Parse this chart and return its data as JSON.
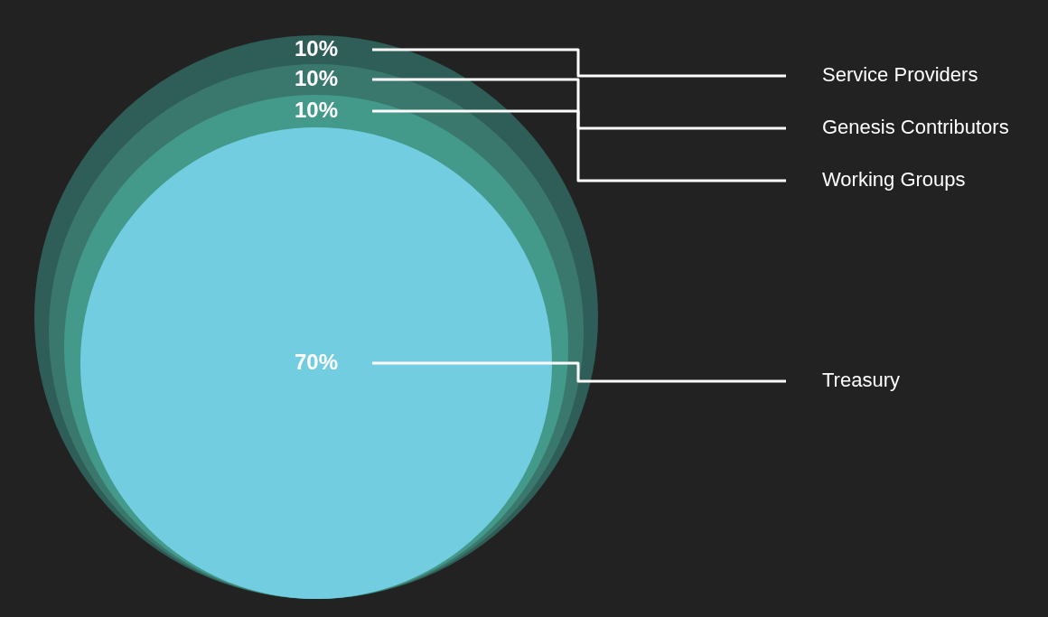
{
  "chart_data": {
    "type": "other",
    "categories": [
      "Service Providers",
      "Genesis Contributors",
      "Working Groups",
      "Treasury"
    ],
    "values": [
      10,
      10,
      10,
      70
    ],
    "value_labels": [
      "10%",
      "10%",
      "10%",
      "70%"
    ],
    "colors": [
      "#2e5e57",
      "#3a786d",
      "#43998a",
      "#72cde0"
    ]
  }
}
